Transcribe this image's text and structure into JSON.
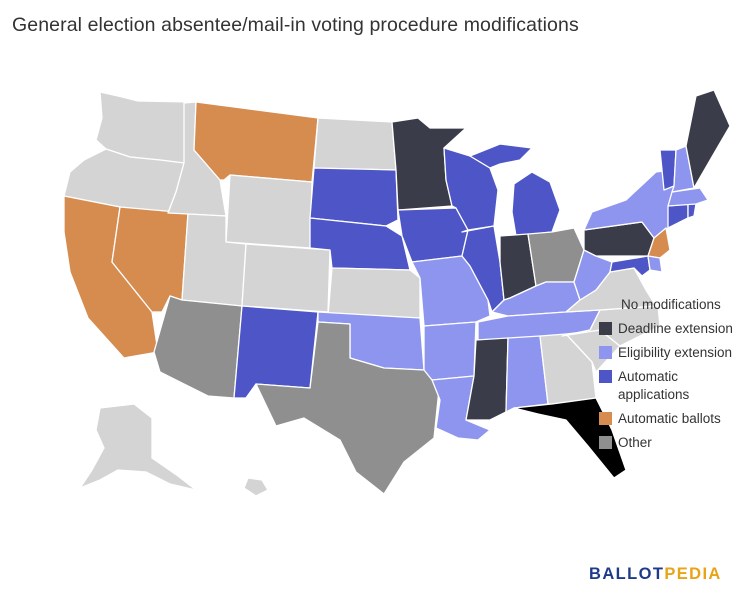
{
  "title": "General election absentee/mail-in voting procedure modifications",
  "legend": [
    {
      "label": "No modifications",
      "color": "#d4d4d4",
      "swatch": false
    },
    {
      "label": "Deadline extension",
      "color": "#3b3c4a"
    },
    {
      "label": "Eligibility extension",
      "color": "#8e95ee"
    },
    {
      "label": "Automatic applications",
      "color": "#4d55c7"
    },
    {
      "label": "Automatic ballots",
      "color": "#d68b4f"
    },
    {
      "label": "Other",
      "color": "#8f8f8f"
    }
  ],
  "brand": {
    "part1": "BALLOT",
    "part2": "PEDIA"
  },
  "categories": {
    "No modifications": [
      "WA",
      "OR",
      "ID",
      "WY",
      "UT",
      "CO",
      "KS",
      "ND",
      "GA",
      "SC",
      "NC",
      "VA",
      "AK",
      "HI"
    ],
    "Deadline extension": [
      "MN",
      "IN",
      "MS",
      "ME",
      "PA"
    ],
    "Eligibility extension": [
      "OK",
      "MO",
      "AR",
      "LA",
      "AL",
      "TN",
      "KY",
      "WV",
      "NY",
      "NH",
      "MA",
      "DE"
    ],
    "Automatic applications": [
      "SD",
      "NE",
      "IA",
      "WI",
      "IL",
      "MI",
      "NM",
      "VT",
      "CT",
      "RI",
      "MD"
    ],
    "Automatic ballots": [
      "MT",
      "CA",
      "NV",
      "NJ"
    ],
    "Other": [
      "AZ",
      "TX",
      "OH"
    ]
  }
}
